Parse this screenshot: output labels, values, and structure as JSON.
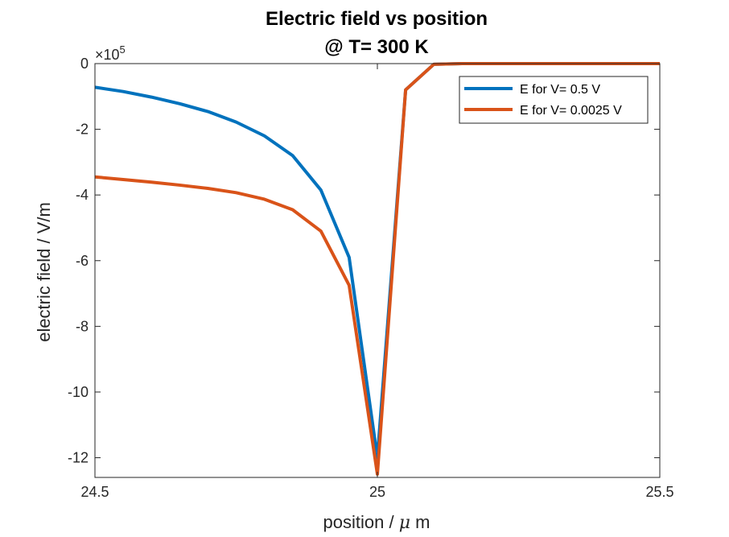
{
  "chart_data": {
    "type": "line",
    "title": [
      "Electric field vs position",
      "@ T= 300 K"
    ],
    "xlabel_text": "position / ",
    "xlabel_symbol": "μ",
    "xlabel_unit": " m",
    "ylabel": "electric field / V/m",
    "xlim": [
      24.5,
      25.5
    ],
    "ylim": [
      -12.6,
      0
    ],
    "y_exponent_base": "×10",
    "y_exponent_power": "5",
    "xticks": [
      24.5,
      25,
      25.5
    ],
    "xtick_labels": [
      "24.5",
      "25",
      "25.5"
    ],
    "yticks": [
      0,
      -2,
      -4,
      -6,
      -8,
      -10,
      -12
    ],
    "ytick_labels": [
      "0",
      "-2",
      "-4",
      "-6",
      "-8",
      "-10",
      "-12"
    ],
    "grid": false,
    "legend_position": "top-right",
    "series": [
      {
        "name": "E for V= 0.5 V",
        "color": "#0072BD",
        "x": [
          24.5,
          24.55,
          24.6,
          24.65,
          24.7,
          24.75,
          24.8,
          24.85,
          24.9,
          24.95,
          25.0,
          25.05,
          25.1,
          25.15,
          25.2,
          25.25,
          25.3,
          25.35,
          25.4,
          25.45,
          25.5
        ],
        "y": [
          -0.72,
          -0.85,
          -1.02,
          -1.22,
          -1.46,
          -1.78,
          -2.2,
          -2.8,
          -3.85,
          -5.9,
          -12.0,
          -0.8,
          -0.02,
          0,
          0,
          0,
          0,
          0,
          0,
          0,
          0
        ]
      },
      {
        "name": "E for V= 0.0025 V",
        "color": "#D95319",
        "x": [
          24.5,
          24.55,
          24.6,
          24.65,
          24.7,
          24.75,
          24.8,
          24.85,
          24.9,
          24.95,
          25.0,
          25.05,
          25.1,
          25.15,
          25.2,
          25.25,
          25.3,
          25.35,
          25.4,
          25.45,
          25.5
        ],
        "y": [
          -3.45,
          -3.53,
          -3.61,
          -3.7,
          -3.8,
          -3.93,
          -4.13,
          -4.45,
          -5.1,
          -6.75,
          -12.5,
          -0.8,
          -0.02,
          0,
          0,
          0,
          0,
          0,
          0,
          0,
          0
        ]
      }
    ]
  }
}
